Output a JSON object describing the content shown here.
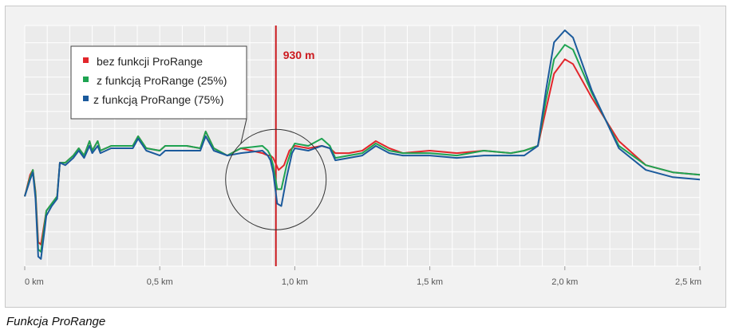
{
  "caption": "Funkcja ProRange",
  "colors": {
    "bez": "#e2262b",
    "z25": "#1ea351",
    "z75": "#1b5a9c",
    "marker": "#cc1a1f",
    "grid": "#d8d8d8",
    "plot_bg": "#ebebeb"
  },
  "chart_data": {
    "type": "line",
    "title": "",
    "xlabel": "",
    "ylabel": "",
    "xlim": [
      0,
      2.5
    ],
    "ylim": [
      0,
      10
    ],
    "grid": true,
    "legend_position": "top-left",
    "x_ticks": [
      {
        "value": 0,
        "label": "0 km"
      },
      {
        "value": 0.5,
        "label": "0,5 km"
      },
      {
        "value": 1.0,
        "label": "1,0 km"
      },
      {
        "value": 1.5,
        "label": "1,5 km"
      },
      {
        "value": 2.0,
        "label": "2,0 km"
      },
      {
        "value": 2.5,
        "label": "2,5 km"
      }
    ],
    "marker": {
      "x": 0.93,
      "label": "930 m"
    },
    "highlight_circle": {
      "x": 0.93,
      "y": 3.6
    },
    "series": [
      {
        "name": "bez funkcji ProRange",
        "color": "#e2262b",
        "points": [
          [
            0,
            2.9
          ],
          [
            0.02,
            3.8
          ],
          [
            0.03,
            4.0
          ],
          [
            0.04,
            3.1
          ],
          [
            0.05,
            1.0
          ],
          [
            0.06,
            0.9
          ],
          [
            0.08,
            2.3
          ],
          [
            0.1,
            2.6
          ],
          [
            0.12,
            2.9
          ],
          [
            0.13,
            4.3
          ],
          [
            0.15,
            4.3
          ],
          [
            0.18,
            4.6
          ],
          [
            0.2,
            4.9
          ],
          [
            0.22,
            4.6
          ],
          [
            0.24,
            5.2
          ],
          [
            0.25,
            4.8
          ],
          [
            0.27,
            5.2
          ],
          [
            0.28,
            4.8
          ],
          [
            0.32,
            5.0
          ],
          [
            0.4,
            5.0
          ],
          [
            0.42,
            5.4
          ],
          [
            0.45,
            4.9
          ],
          [
            0.5,
            4.8
          ],
          [
            0.52,
            5.0
          ],
          [
            0.6,
            5.0
          ],
          [
            0.65,
            4.9
          ],
          [
            0.67,
            5.6
          ],
          [
            0.7,
            4.9
          ],
          [
            0.75,
            4.6
          ],
          [
            0.8,
            4.9
          ],
          [
            0.88,
            4.7
          ],
          [
            0.9,
            4.6
          ],
          [
            0.91,
            4.6
          ],
          [
            0.92,
            4.5
          ],
          [
            0.94,
            4.0
          ],
          [
            0.96,
            4.2
          ],
          [
            0.98,
            4.8
          ],
          [
            1.0,
            5.0
          ],
          [
            1.05,
            4.9
          ],
          [
            1.1,
            5.0
          ],
          [
            1.13,
            4.9
          ],
          [
            1.15,
            4.7
          ],
          [
            1.2,
            4.7
          ],
          [
            1.25,
            4.8
          ],
          [
            1.3,
            5.2
          ],
          [
            1.35,
            4.9
          ],
          [
            1.4,
            4.7
          ],
          [
            1.5,
            4.8
          ],
          [
            1.6,
            4.7
          ],
          [
            1.7,
            4.8
          ],
          [
            1.8,
            4.7
          ],
          [
            1.85,
            4.8
          ],
          [
            1.9,
            5.0
          ],
          [
            1.93,
            6.5
          ],
          [
            1.96,
            8.0
          ],
          [
            2.0,
            8.6
          ],
          [
            2.03,
            8.4
          ],
          [
            2.1,
            7.0
          ],
          [
            2.2,
            5.2
          ],
          [
            2.3,
            4.2
          ],
          [
            2.4,
            3.9
          ],
          [
            2.5,
            3.8
          ]
        ]
      },
      {
        "name": "z funkcją ProRange (25%)",
        "color": "#1ea351",
        "points": [
          [
            0,
            2.9
          ],
          [
            0.02,
            3.7
          ],
          [
            0.03,
            4.0
          ],
          [
            0.04,
            3.0
          ],
          [
            0.05,
            0.7
          ],
          [
            0.06,
            0.6
          ],
          [
            0.08,
            2.3
          ],
          [
            0.1,
            2.6
          ],
          [
            0.12,
            2.9
          ],
          [
            0.13,
            4.3
          ],
          [
            0.15,
            4.3
          ],
          [
            0.18,
            4.6
          ],
          [
            0.2,
            4.9
          ],
          [
            0.22,
            4.6
          ],
          [
            0.24,
            5.2
          ],
          [
            0.25,
            4.8
          ],
          [
            0.27,
            5.2
          ],
          [
            0.28,
            4.8
          ],
          [
            0.32,
            5.0
          ],
          [
            0.4,
            5.0
          ],
          [
            0.42,
            5.4
          ],
          [
            0.45,
            4.9
          ],
          [
            0.5,
            4.8
          ],
          [
            0.52,
            5.0
          ],
          [
            0.6,
            5.0
          ],
          [
            0.65,
            4.9
          ],
          [
            0.67,
            5.6
          ],
          [
            0.7,
            4.9
          ],
          [
            0.75,
            4.6
          ],
          [
            0.8,
            4.9
          ],
          [
            0.88,
            5.0
          ],
          [
            0.9,
            4.8
          ],
          [
            0.91,
            4.6
          ],
          [
            0.92,
            4.2
          ],
          [
            0.935,
            3.2
          ],
          [
            0.95,
            3.2
          ],
          [
            0.97,
            4.2
          ],
          [
            0.99,
            4.9
          ],
          [
            1.0,
            5.1
          ],
          [
            1.05,
            5.0
          ],
          [
            1.1,
            5.3
          ],
          [
            1.13,
            5.0
          ],
          [
            1.15,
            4.5
          ],
          [
            1.2,
            4.6
          ],
          [
            1.25,
            4.7
          ],
          [
            1.3,
            5.1
          ],
          [
            1.35,
            4.8
          ],
          [
            1.4,
            4.7
          ],
          [
            1.5,
            4.7
          ],
          [
            1.6,
            4.6
          ],
          [
            1.7,
            4.8
          ],
          [
            1.8,
            4.7
          ],
          [
            1.85,
            4.8
          ],
          [
            1.9,
            5.0
          ],
          [
            1.93,
            6.9
          ],
          [
            1.96,
            8.6
          ],
          [
            2.0,
            9.2
          ],
          [
            2.03,
            9.0
          ],
          [
            2.1,
            7.2
          ],
          [
            2.2,
            5.0
          ],
          [
            2.3,
            4.2
          ],
          [
            2.4,
            3.9
          ],
          [
            2.5,
            3.8
          ]
        ]
      },
      {
        "name": "z funkcją ProRange (75%)",
        "color": "#1b5a9c",
        "points": [
          [
            0,
            2.9
          ],
          [
            0.02,
            3.6
          ],
          [
            0.03,
            3.9
          ],
          [
            0.04,
            2.8
          ],
          [
            0.05,
            0.4
          ],
          [
            0.06,
            0.3
          ],
          [
            0.08,
            2.1
          ],
          [
            0.1,
            2.5
          ],
          [
            0.12,
            2.8
          ],
          [
            0.13,
            4.3
          ],
          [
            0.15,
            4.2
          ],
          [
            0.18,
            4.5
          ],
          [
            0.2,
            4.8
          ],
          [
            0.22,
            4.5
          ],
          [
            0.24,
            5.0
          ],
          [
            0.25,
            4.7
          ],
          [
            0.27,
            5.0
          ],
          [
            0.28,
            4.7
          ],
          [
            0.32,
            4.9
          ],
          [
            0.4,
            4.9
          ],
          [
            0.42,
            5.3
          ],
          [
            0.45,
            4.8
          ],
          [
            0.5,
            4.6
          ],
          [
            0.52,
            4.8
          ],
          [
            0.6,
            4.8
          ],
          [
            0.65,
            4.8
          ],
          [
            0.67,
            5.4
          ],
          [
            0.7,
            4.8
          ],
          [
            0.75,
            4.6
          ],
          [
            0.8,
            4.7
          ],
          [
            0.88,
            4.8
          ],
          [
            0.9,
            4.6
          ],
          [
            0.91,
            4.4
          ],
          [
            0.92,
            3.9
          ],
          [
            0.935,
            2.6
          ],
          [
            0.95,
            2.5
          ],
          [
            0.97,
            3.7
          ],
          [
            0.99,
            4.7
          ],
          [
            1.0,
            4.9
          ],
          [
            1.05,
            4.8
          ],
          [
            1.1,
            5.0
          ],
          [
            1.13,
            4.9
          ],
          [
            1.15,
            4.4
          ],
          [
            1.2,
            4.5
          ],
          [
            1.25,
            4.6
          ],
          [
            1.3,
            5.0
          ],
          [
            1.35,
            4.7
          ],
          [
            1.4,
            4.6
          ],
          [
            1.5,
            4.6
          ],
          [
            1.6,
            4.5
          ],
          [
            1.7,
            4.6
          ],
          [
            1.8,
            4.6
          ],
          [
            1.85,
            4.6
          ],
          [
            1.9,
            5.0
          ],
          [
            1.93,
            7.3
          ],
          [
            1.96,
            9.3
          ],
          [
            2.0,
            9.8
          ],
          [
            2.03,
            9.5
          ],
          [
            2.1,
            7.3
          ],
          [
            2.2,
            4.9
          ],
          [
            2.3,
            4.0
          ],
          [
            2.4,
            3.7
          ],
          [
            2.5,
            3.6
          ]
        ]
      }
    ]
  }
}
